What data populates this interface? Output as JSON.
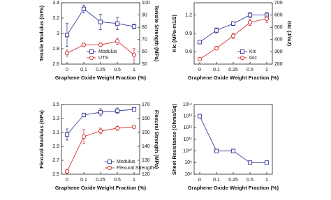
{
  "chart_data": [
    {
      "type": "line",
      "categories": [
        "0",
        "0.1",
        "0.25",
        "0.5",
        "1"
      ],
      "xlabel": "Graphene Oxide Weight Fraction (%)",
      "ylabel": "Tensile Modulus (GPa)",
      "y2label": "Tensile Strength (MPa)",
      "ylim": [
        2.6,
        3.4
      ],
      "yticks": [
        2.6,
        2.8,
        3.0,
        3.2,
        3.4
      ],
      "y2lim": [
        50,
        100
      ],
      "y2ticks": [
        50,
        60,
        70,
        80,
        90,
        100
      ],
      "legend": "lower center",
      "series": [
        {
          "name": "Modulus",
          "color": "#3b3f9c",
          "marker": "square",
          "values": [
            2.98,
            3.32,
            3.15,
            3.13,
            3.09
          ],
          "errors": [
            0.15,
            0.05,
            0.1,
            0.08,
            0.03
          ]
        },
        {
          "name": "UTS",
          "color": "#d23a3a",
          "marker": "circle",
          "axis": "y2",
          "values": [
            59,
            65.7,
            65.7,
            68.6,
            57.6
          ],
          "errors": [
            2.5,
            1.5,
            1.5,
            2.5,
            5
          ]
        }
      ]
    },
    {
      "type": "line",
      "categories": [
        "0",
        "0.1",
        "0.25",
        "0.5",
        "1"
      ],
      "xlabel": "Graphene Oxide Weight Fraction (%)",
      "ylabel": "KIc (MPa·m1/2)",
      "y2label": "GIc (J/m2)",
      "ylim": [
        0.4,
        1.4
      ],
      "yticks": [
        0.6,
        0.9,
        1.2
      ],
      "y2lim": [
        200,
        700
      ],
      "y2ticks": [
        200,
        300,
        400,
        500,
        600,
        700
      ],
      "legend": "lower right",
      "series": [
        {
          "name": "KIc",
          "color": "#3b3f9c",
          "marker": "square",
          "values": [
            0.76,
            0.95,
            1.06,
            1.2,
            1.2
          ],
          "errors": [
            0.02,
            0.04,
            0.03,
            0.04,
            0.04
          ]
        },
        {
          "name": "GIc",
          "color": "#d23a3a",
          "marker": "circle",
          "axis": "y2",
          "values": [
            240,
            330,
            430,
            540,
            570
          ],
          "errors": [
            10,
            15,
            20,
            25,
            30
          ]
        }
      ]
    },
    {
      "type": "line",
      "categories": [
        "0",
        "0.1",
        "0.25",
        "0.5",
        "1"
      ],
      "xlabel": "Graphene Oxide Weight Fraction (%)",
      "ylabel": "Flexural Modulus (GPa)",
      "y2label": "Flexural Strength (MPa)",
      "ylim": [
        2.5,
        3.5
      ],
      "yticks": [
        2.5,
        2.7,
        2.9,
        3.1,
        3.3,
        3.5
      ],
      "y2lim": [
        120,
        170
      ],
      "y2ticks": [
        120,
        130,
        140,
        150,
        160,
        170
      ],
      "legend": "lower right",
      "series": [
        {
          "name": "Modulus",
          "color": "#3b3f9c",
          "marker": "square",
          "values": [
            3.07,
            3.35,
            3.39,
            3.41,
            3.43
          ],
          "errors": [
            0.08,
            0.02,
            0.05,
            0.04,
            0.02
          ]
        },
        {
          "name": "Flexural Strength",
          "color": "#d23a3a",
          "marker": "circle",
          "axis": "y2",
          "values": [
            122,
            147,
            151,
            153,
            154
          ],
          "errors": [
            1.5,
            5,
            2,
            1.5,
            1
          ]
        }
      ]
    },
    {
      "type": "line",
      "categories": [
        "0",
        "0.1",
        "0.25",
        "0.5",
        "1"
      ],
      "xlabel": "Graphene Oxide Weight Fraction (%)",
      "ylabel": "Sheet Resistance (Ohms/Sq)",
      "log_scale": true,
      "ylim": [
        100000000,
        100000000000000
      ],
      "yticks": [
        {
          "value": 100000000,
          "label": "10⁸"
        },
        {
          "value": 1000000000,
          "label": "10⁹"
        },
        {
          "value": 10000000000,
          "label": "10¹⁰"
        },
        {
          "value": 100000000000,
          "label": "10¹¹"
        },
        {
          "value": 1000000000000,
          "label": "10¹²"
        },
        {
          "value": 10000000000000,
          "label": "10¹³"
        },
        {
          "value": 100000000000000,
          "label": "10¹⁴"
        }
      ],
      "series": [
        {
          "color": "#3b3f9c",
          "marker": "square",
          "values": [
            10000000000000,
            10000000000,
            10000000000,
            1000000000,
            1000000000
          ]
        }
      ]
    }
  ]
}
